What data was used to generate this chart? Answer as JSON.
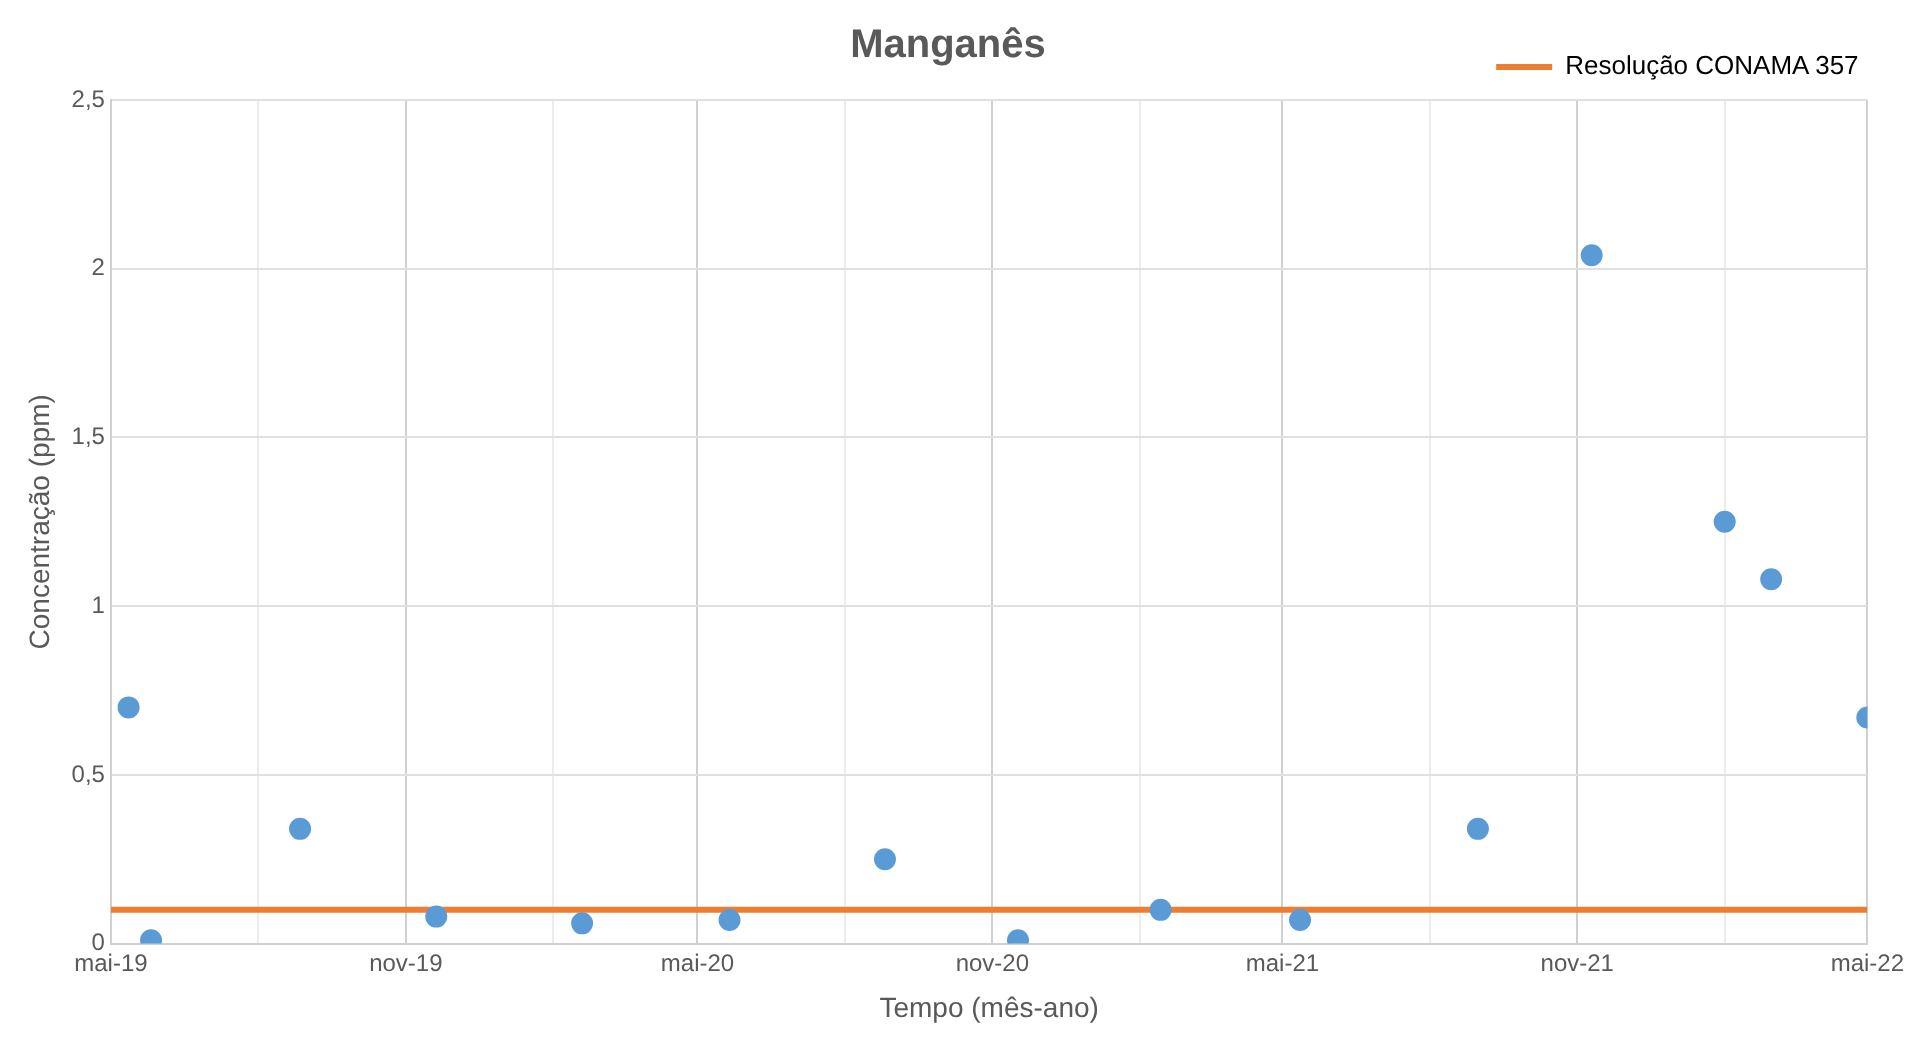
{
  "chart_data": {
    "type": "scatter",
    "title": "Manganês",
    "xlabel": "Tempo (mês-ano)",
    "ylabel": "Concentração (ppm)",
    "x": [
      "2019-05-12",
      "2019-05-26",
      "2019-08-27",
      "2019-11-20",
      "2020-02-19",
      "2020-05-21",
      "2020-08-26",
      "2020-11-17",
      "2021-02-14",
      "2021-05-12",
      "2021-08-31",
      "2021-11-10",
      "2022-02-01",
      "2022-03-02",
      "2022-05-01"
    ],
    "series": [
      {
        "color": "#5b9bd5",
        "values": [
          0.7,
          0.01,
          0.34,
          0.08,
          0.06,
          0.07,
          0.25,
          0.01,
          0.1,
          0.07,
          0.34,
          2.04,
          1.25,
          1.08,
          0.67
        ]
      }
    ],
    "xlim": [
      "2019-05",
      "2022-05"
    ],
    "xticks": [
      {
        "value": "2019-05",
        "label": "mai-19"
      },
      {
        "value": "2019-08",
        "label": null
      },
      {
        "value": "2019-11",
        "label": "nov-19"
      },
      {
        "value": "2020-02",
        "label": null
      },
      {
        "value": "2020-05",
        "label": "mai-20"
      },
      {
        "value": "2020-08",
        "label": null
      },
      {
        "value": "2020-11",
        "label": "nov-20"
      },
      {
        "value": "2021-02",
        "label": null
      },
      {
        "value": "2021-05",
        "label": "mai-21"
      },
      {
        "value": "2021-08",
        "label": null
      },
      {
        "value": "2021-11",
        "label": "nov-21"
      },
      {
        "value": "2022-02",
        "label": null
      },
      {
        "value": "2022-05",
        "label": "mai-22"
      }
    ],
    "ylim": [
      0,
      2.5
    ],
    "yticks": [
      {
        "value": 0,
        "label": "0"
      },
      {
        "value": 0.5,
        "label": "0,5"
      },
      {
        "value": 1,
        "label": "1"
      },
      {
        "value": 1.5,
        "label": "1,5"
      },
      {
        "value": 2,
        "label": "2"
      },
      {
        "value": 2.5,
        "label": "2,5"
      }
    ],
    "ref_lines": [
      {
        "axis": "y",
        "value": 0.1,
        "label": "Resolução CONAMA 357",
        "color": "#ed7d31"
      }
    ],
    "grid": true,
    "legend": "top right",
    "marker": "circle"
  }
}
